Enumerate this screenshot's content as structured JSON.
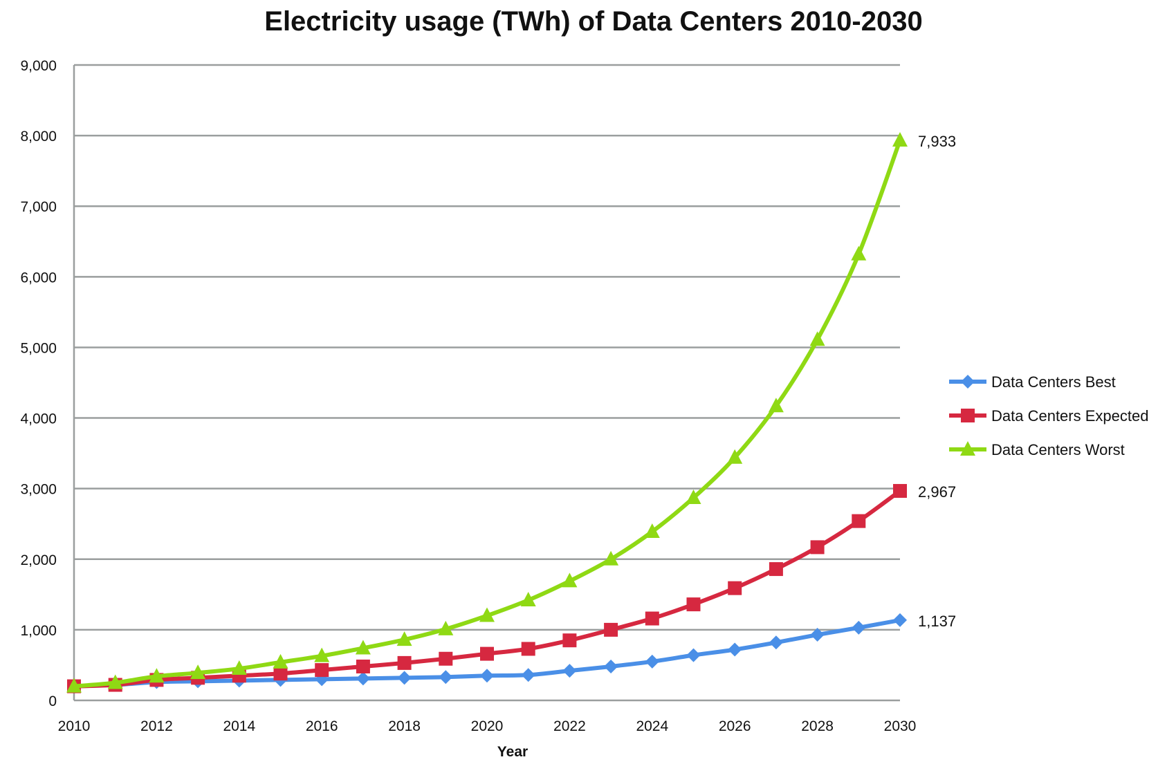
{
  "chart_data": {
    "type": "line",
    "title": "Electricity usage (TWh) of Data Centers 2010-2030",
    "xlabel": "Year",
    "ylabel": "",
    "ylim": [
      0,
      9000
    ],
    "yticks": [
      0,
      1000,
      2000,
      3000,
      4000,
      5000,
      6000,
      7000,
      8000,
      9000
    ],
    "ytick_labels": [
      "0",
      "1,000",
      "2,000",
      "3,000",
      "4,000",
      "5,000",
      "6,000",
      "7,000",
      "8,000",
      "9,000"
    ],
    "xlim": [
      2010,
      2030
    ],
    "xtick_labels": [
      "2010",
      "2012",
      "2014",
      "2016",
      "2018",
      "2020",
      "2022",
      "2024",
      "2026",
      "2028",
      "2030"
    ],
    "grid": "horizontal",
    "legend_position": "right",
    "x": [
      2010,
      2011,
      2012,
      2013,
      2014,
      2015,
      2016,
      2017,
      2018,
      2019,
      2020,
      2021,
      2022,
      2023,
      2024,
      2025,
      2026,
      2027,
      2028,
      2029,
      2030
    ],
    "series": [
      {
        "name": "Data Centers Best",
        "color": "#4a8fe7",
        "marker": "diamond",
        "values": [
          200,
          220,
          260,
          270,
          280,
          290,
          300,
          310,
          320,
          330,
          350,
          360,
          420,
          480,
          550,
          640,
          720,
          820,
          930,
          1030,
          1137
        ],
        "end_label": "1,137"
      },
      {
        "name": "Data Centers Expected",
        "color": "#d62840",
        "marker": "square",
        "values": [
          200,
          220,
          290,
          320,
          350,
          380,
          430,
          480,
          530,
          590,
          660,
          730,
          850,
          1000,
          1160,
          1360,
          1590,
          1860,
          2170,
          2540,
          2967
        ],
        "end_label": "2,967"
      },
      {
        "name": "Data Centers Worst",
        "color": "#8fd914",
        "marker": "triangle",
        "values": [
          200,
          250,
          340,
          390,
          450,
          540,
          630,
          740,
          860,
          1010,
          1200,
          1420,
          1690,
          2000,
          2390,
          2870,
          3440,
          4170,
          5110,
          6320,
          7933
        ],
        "end_label": "7,933"
      }
    ]
  }
}
